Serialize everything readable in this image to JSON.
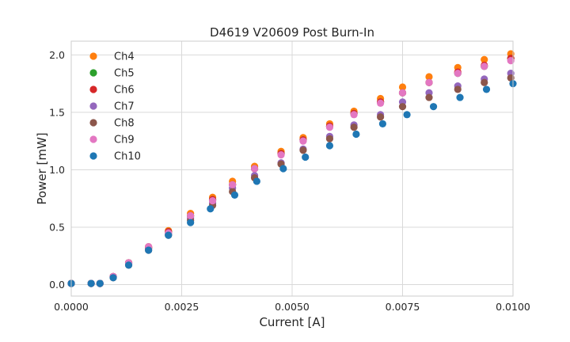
{
  "chart_data": {
    "type": "scatter",
    "title": "D4619 V20609 Post Burn-In",
    "xlabel": "Current [A]",
    "ylabel": "Power [mW]",
    "xlim": [
      0,
      0.01
    ],
    "ylim": [
      -0.1,
      2.12
    ],
    "xticks": [
      0,
      0.0025,
      0.005,
      0.0075,
      0.01
    ],
    "xtick_labels": [
      "0.0000",
      "0.0025",
      "0.0050",
      "0.0075",
      "0.0100"
    ],
    "yticks": [
      0,
      0.5,
      1,
      1.5,
      2
    ],
    "ytick_labels": [
      "0.0",
      "0.5",
      "1.0",
      "1.5",
      "2.0"
    ],
    "grid": true,
    "legend_position": "top-left",
    "series": [
      {
        "name": "Ch4",
        "color": "#ff7f0e",
        "x": [
          0,
          0.00045,
          0.00065,
          0.00095,
          0.0013,
          0.00175,
          0.0022,
          0.0027,
          0.0032,
          0.00365,
          0.00415,
          0.00475,
          0.00525,
          0.00585,
          0.0064,
          0.007,
          0.0075,
          0.0081,
          0.00875,
          0.00935,
          0.00995
        ],
        "y": [
          0.01,
          0.01,
          0.01,
          0.07,
          0.19,
          0.33,
          0.47,
          0.62,
          0.76,
          0.9,
          1.03,
          1.16,
          1.28,
          1.4,
          1.51,
          1.62,
          1.72,
          1.81,
          1.89,
          1.96,
          2.01
        ]
      },
      {
        "name": "Ch5",
        "color": "#2ca02c",
        "x": [
          0,
          0.00045,
          0.00065,
          0.00095,
          0.0013,
          0.00175,
          0.0022,
          0.0027,
          0.0032,
          0.00365,
          0.00415,
          0.00475,
          0.00525,
          0.00585,
          0.0064,
          0.007,
          0.0075,
          0.0081,
          0.00875,
          0.00935,
          0.00995
        ],
        "y": [
          0.01,
          0.01,
          0.01,
          0.07,
          0.19,
          0.32,
          0.46,
          0.6,
          0.74,
          0.87,
          1.01,
          1.14,
          1.26,
          1.38,
          1.49,
          1.59,
          1.67,
          1.76,
          1.84,
          1.9,
          1.97
        ]
      },
      {
        "name": "Ch6",
        "color": "#d62728",
        "x": [
          0,
          0.00045,
          0.00065,
          0.00095,
          0.0013,
          0.00175,
          0.0022,
          0.0027,
          0.0032,
          0.00365,
          0.00415,
          0.00475,
          0.00525,
          0.00585,
          0.0064,
          0.007,
          0.0075,
          0.0081,
          0.00875,
          0.00935,
          0.00995
        ],
        "y": [
          0.01,
          0.01,
          0.01,
          0.07,
          0.19,
          0.32,
          0.46,
          0.6,
          0.74,
          0.87,
          1.01,
          1.14,
          1.26,
          1.38,
          1.49,
          1.59,
          1.67,
          1.76,
          1.85,
          1.91,
          1.97
        ]
      },
      {
        "name": "Ch7",
        "color": "#9467bd",
        "x": [
          0,
          0.00045,
          0.00065,
          0.00095,
          0.0013,
          0.00175,
          0.0022,
          0.0027,
          0.0032,
          0.00365,
          0.00415,
          0.00475,
          0.00525,
          0.00585,
          0.0064,
          0.007,
          0.0075,
          0.0081,
          0.00875,
          0.00935,
          0.00995
        ],
        "y": [
          0.01,
          0.01,
          0.01,
          0.07,
          0.18,
          0.31,
          0.44,
          0.58,
          0.71,
          0.84,
          0.95,
          1.06,
          1.18,
          1.29,
          1.39,
          1.48,
          1.59,
          1.67,
          1.73,
          1.79,
          1.84
        ]
      },
      {
        "name": "Ch8",
        "color": "#8c564b",
        "x": [
          0,
          0.00045,
          0.00065,
          0.00095,
          0.0013,
          0.00175,
          0.0022,
          0.0027,
          0.0032,
          0.00365,
          0.00415,
          0.00475,
          0.00525,
          0.00585,
          0.0064,
          0.007,
          0.0075,
          0.0081,
          0.00875,
          0.00935,
          0.00995
        ],
        "y": [
          0.01,
          0.01,
          0.01,
          0.06,
          0.17,
          0.3,
          0.43,
          0.56,
          0.69,
          0.81,
          0.93,
          1.05,
          1.17,
          1.27,
          1.37,
          1.46,
          1.55,
          1.63,
          1.7,
          1.76,
          1.8
        ]
      },
      {
        "name": "Ch9",
        "color": "#e377c2",
        "x": [
          0,
          0.00045,
          0.00065,
          0.00095,
          0.0013,
          0.00175,
          0.0022,
          0.0027,
          0.0032,
          0.00365,
          0.00415,
          0.00475,
          0.00525,
          0.00585,
          0.0064,
          0.007,
          0.0075,
          0.0081,
          0.00875,
          0.00935,
          0.00995
        ],
        "y": [
          0.01,
          0.01,
          0.01,
          0.07,
          0.19,
          0.33,
          0.45,
          0.6,
          0.73,
          0.87,
          1.01,
          1.13,
          1.25,
          1.37,
          1.48,
          1.58,
          1.67,
          1.76,
          1.84,
          1.9,
          1.95
        ]
      },
      {
        "name": "Ch10",
        "color": "#1f77b4",
        "x": [
          0,
          0.00045,
          0.00065,
          0.00095,
          0.0013,
          0.00175,
          0.0022,
          0.0027,
          0.00315,
          0.0037,
          0.0042,
          0.0048,
          0.0053,
          0.00585,
          0.00645,
          0.00705,
          0.0076,
          0.0082,
          0.0088,
          0.0094,
          0.01
        ],
        "y": [
          0.01,
          0.01,
          0.01,
          0.06,
          0.17,
          0.3,
          0.43,
          0.54,
          0.66,
          0.78,
          0.9,
          1.01,
          1.11,
          1.21,
          1.31,
          1.4,
          1.48,
          1.55,
          1.63,
          1.7,
          1.75
        ]
      }
    ]
  }
}
